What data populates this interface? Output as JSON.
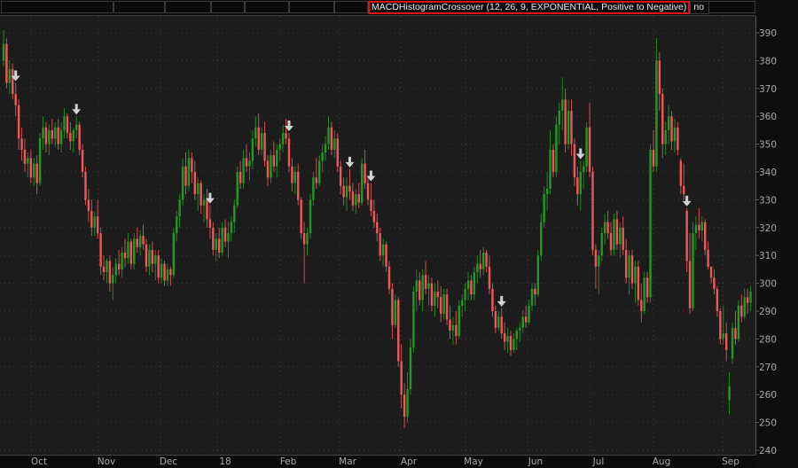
{
  "header": {
    "study_label": "MACDHistogramCrossover (12, 26, 9, EXPONENTIAL, Positive to Negative)",
    "study_value": "no"
  },
  "colors": {
    "background": "#1c1c1c",
    "up": "#1f9b1f",
    "down": "#f0575a",
    "signal_arrow": "#d2d2d2",
    "study_border": "#e01010",
    "grid": "#3a3a3a",
    "axis_text": "#a8a8a8"
  },
  "chart_data": {
    "type": "candlestick",
    "grid": true,
    "ylim": [
      240,
      392
    ],
    "y_ticks": [
      "390",
      "380",
      "370",
      "360",
      "350",
      "340",
      "330",
      "320",
      "310",
      "300",
      "290",
      "280",
      "270",
      "260",
      "250",
      "240"
    ],
    "x_ticks": [
      "Oct",
      "Nov",
      "Dec",
      "18",
      "Feb",
      "Mar",
      "Apr",
      "May",
      "Jun",
      "Jul",
      "Aug",
      "Sep"
    ],
    "signal": "down-arrow",
    "signal_indices": [
      4,
      24,
      68,
      94,
      114,
      121,
      164,
      190,
      225
    ],
    "bars_ohlc": [
      [
        380,
        391,
        378,
        386
      ],
      [
        386,
        388,
        370,
        372
      ],
      [
        372,
        380,
        368,
        377
      ],
      [
        377,
        379,
        366,
        368
      ],
      [
        368,
        372,
        360,
        364
      ],
      [
        364,
        366,
        348,
        352
      ],
      [
        352,
        356,
        344,
        348
      ],
      [
        348,
        352,
        340,
        343
      ],
      [
        343,
        347,
        338,
        345
      ],
      [
        345,
        348,
        336,
        338
      ],
      [
        338,
        345,
        335,
        343
      ],
      [
        343,
        346,
        332,
        336
      ],
      [
        336,
        354,
        335,
        352
      ],
      [
        352,
        360,
        348,
        356
      ],
      [
        356,
        358,
        347,
        350
      ],
      [
        350,
        357,
        346,
        355
      ],
      [
        355,
        359,
        350,
        352
      ],
      [
        352,
        358,
        349,
        356
      ],
      [
        356,
        359,
        348,
        350
      ],
      [
        350,
        358,
        347,
        355
      ],
      [
        355,
        363,
        352,
        360
      ],
      [
        360,
        361,
        352,
        354
      ],
      [
        354,
        358,
        348,
        351
      ],
      [
        351,
        356,
        347,
        355
      ],
      [
        355,
        360,
        352,
        357
      ],
      [
        357,
        358,
        346,
        348
      ],
      [
        348,
        350,
        338,
        340
      ],
      [
        340,
        342,
        328,
        330
      ],
      [
        330,
        334,
        322,
        326
      ],
      [
        326,
        330,
        317,
        320
      ],
      [
        320,
        326,
        317,
        324
      ],
      [
        324,
        330,
        316,
        318
      ],
      [
        318,
        320,
        303,
        306
      ],
      [
        306,
        310,
        301,
        304
      ],
      [
        304,
        309,
        300,
        308
      ],
      [
        308,
        310,
        297,
        300
      ],
      [
        300,
        306,
        294,
        303
      ],
      [
        303,
        309,
        300,
        307
      ],
      [
        307,
        312,
        303,
        305
      ],
      [
        305,
        313,
        302,
        311
      ],
      [
        311,
        316,
        306,
        309
      ],
      [
        309,
        318,
        307,
        315
      ],
      [
        315,
        316,
        305,
        307
      ],
      [
        307,
        318,
        305,
        316
      ],
      [
        316,
        320,
        311,
        313
      ],
      [
        313,
        319,
        310,
        317
      ],
      [
        317,
        321,
        312,
        314
      ],
      [
        314,
        316,
        304,
        306
      ],
      [
        306,
        314,
        303,
        312
      ],
      [
        312,
        315,
        304,
        307
      ],
      [
        307,
        312,
        301,
        310
      ],
      [
        310,
        312,
        300,
        302
      ],
      [
        302,
        309,
        300,
        307
      ],
      [
        307,
        308,
        299,
        301
      ],
      [
        301,
        307,
        299,
        305
      ],
      [
        305,
        306,
        299,
        303
      ],
      [
        303,
        320,
        302,
        318
      ],
      [
        318,
        326,
        315,
        324
      ],
      [
        324,
        332,
        320,
        330
      ],
      [
        330,
        345,
        328,
        342
      ],
      [
        342,
        347,
        332,
        335
      ],
      [
        335,
        348,
        333,
        345
      ],
      [
        345,
        347,
        336,
        340
      ],
      [
        340,
        344,
        330,
        332
      ],
      [
        332,
        338,
        326,
        336
      ],
      [
        336,
        337,
        325,
        328
      ],
      [
        328,
        332,
        322,
        330
      ],
      [
        330,
        334,
        320,
        323
      ],
      [
        323,
        328,
        316,
        320
      ],
      [
        320,
        322,
        310,
        312
      ],
      [
        312,
        318,
        308,
        316
      ],
      [
        316,
        320,
        309,
        311
      ],
      [
        311,
        322,
        310,
        320
      ],
      [
        320,
        323,
        313,
        315
      ],
      [
        315,
        322,
        309,
        318
      ],
      [
        318,
        324,
        315,
        322
      ],
      [
        322,
        330,
        318,
        328
      ],
      [
        328,
        342,
        327,
        340
      ],
      [
        340,
        344,
        334,
        336
      ],
      [
        336,
        348,
        334,
        345
      ],
      [
        345,
        350,
        340,
        342
      ],
      [
        342,
        347,
        337,
        344
      ],
      [
        344,
        355,
        341,
        352
      ],
      [
        352,
        360,
        349,
        356
      ],
      [
        356,
        361,
        346,
        348
      ],
      [
        348,
        356,
        346,
        354
      ],
      [
        354,
        358,
        342,
        344
      ],
      [
        344,
        346,
        335,
        338
      ],
      [
        338,
        348,
        336,
        346
      ],
      [
        346,
        351,
        340,
        342
      ],
      [
        342,
        350,
        338,
        348
      ],
      [
        348,
        352,
        344,
        350
      ],
      [
        350,
        357,
        347,
        354
      ],
      [
        354,
        359,
        350,
        352
      ],
      [
        352,
        354,
        340,
        342
      ],
      [
        342,
        345,
        333,
        336
      ],
      [
        336,
        342,
        332,
        340
      ],
      [
        340,
        343,
        328,
        330
      ],
      [
        330,
        331,
        316,
        318
      ],
      [
        318,
        322,
        300,
        314
      ],
      [
        314,
        320,
        310,
        318
      ],
      [
        318,
        332,
        316,
        330
      ],
      [
        330,
        340,
        328,
        338
      ],
      [
        338,
        345,
        334,
        336
      ],
      [
        336,
        346,
        335,
        344
      ],
      [
        344,
        350,
        340,
        347
      ],
      [
        347,
        353,
        344,
        350
      ],
      [
        350,
        360,
        348,
        356
      ],
      [
        356,
        358,
        346,
        348
      ],
      [
        348,
        355,
        345,
        352
      ],
      [
        352,
        354,
        340,
        342
      ],
      [
        342,
        344,
        332,
        335
      ],
      [
        335,
        338,
        328,
        331
      ],
      [
        331,
        338,
        326,
        335
      ],
      [
        335,
        341,
        330,
        333
      ],
      [
        333,
        336,
        326,
        328
      ],
      [
        328,
        334,
        325,
        332
      ],
      [
        332,
        336,
        327,
        329
      ],
      [
        329,
        345,
        328,
        343
      ],
      [
        343,
        348,
        334,
        336
      ],
      [
        336,
        338,
        328,
        330
      ],
      [
        330,
        336,
        324,
        326
      ],
      [
        326,
        330,
        320,
        322
      ],
      [
        322,
        325,
        315,
        318
      ],
      [
        318,
        320,
        308,
        310
      ],
      [
        310,
        316,
        306,
        314
      ],
      [
        314,
        315,
        304,
        306
      ],
      [
        306,
        308,
        296,
        298
      ],
      [
        298,
        300,
        280,
        285
      ],
      [
        285,
        296,
        284,
        294
      ],
      [
        294,
        295,
        270,
        272
      ],
      [
        272,
        278,
        255,
        260
      ],
      [
        260,
        264,
        248,
        252
      ],
      [
        252,
        268,
        250,
        262
      ],
      [
        262,
        280,
        260,
        277
      ],
      [
        277,
        299,
        275,
        297
      ],
      [
        297,
        305,
        290,
        301
      ],
      [
        301,
        304,
        292,
        294
      ],
      [
        294,
        305,
        290,
        303
      ],
      [
        303,
        308,
        296,
        298
      ],
      [
        298,
        303,
        292,
        300
      ],
      [
        300,
        302,
        290,
        292
      ],
      [
        292,
        300,
        288,
        297
      ],
      [
        297,
        301,
        291,
        295
      ],
      [
        295,
        299,
        286,
        289
      ],
      [
        289,
        298,
        287,
        296
      ],
      [
        296,
        298,
        285,
        287
      ],
      [
        287,
        292,
        280,
        283
      ],
      [
        283,
        288,
        278,
        285
      ],
      [
        285,
        290,
        278,
        281
      ],
      [
        281,
        294,
        280,
        292
      ],
      [
        292,
        296,
        288,
        294
      ],
      [
        294,
        300,
        290,
        298
      ],
      [
        298,
        304,
        294,
        301
      ],
      [
        301,
        303,
        294,
        296
      ],
      [
        296,
        306,
        294,
        304
      ],
      [
        304,
        310,
        300,
        307
      ],
      [
        307,
        312,
        302,
        305
      ],
      [
        305,
        313,
        303,
        311
      ],
      [
        311,
        312,
        304,
        306
      ],
      [
        306,
        310,
        296,
        298
      ],
      [
        298,
        300,
        288,
        290
      ],
      [
        290,
        292,
        282,
        284
      ],
      [
        284,
        290,
        283,
        288
      ],
      [
        288,
        291,
        280,
        282
      ],
      [
        282,
        286,
        276,
        279
      ],
      [
        279,
        284,
        275,
        281
      ],
      [
        281,
        283,
        274,
        276
      ],
      [
        276,
        282,
        275,
        280
      ],
      [
        280,
        284,
        276,
        283
      ],
      [
        283,
        286,
        279,
        284
      ],
      [
        284,
        290,
        282,
        288
      ],
      [
        288,
        292,
        284,
        286
      ],
      [
        286,
        294,
        285,
        292
      ],
      [
        292,
        300,
        290,
        298
      ],
      [
        298,
        300,
        292,
        296
      ],
      [
        296,
        312,
        295,
        310
      ],
      [
        310,
        325,
        308,
        322
      ],
      [
        322,
        335,
        320,
        332
      ],
      [
        332,
        340,
        326,
        334
      ],
      [
        334,
        355,
        332,
        348
      ],
      [
        348,
        350,
        338,
        340
      ],
      [
        340,
        360,
        338,
        357
      ],
      [
        357,
        365,
        350,
        362
      ],
      [
        362,
        374,
        355,
        366
      ],
      [
        366,
        370,
        347,
        350
      ],
      [
        350,
        366,
        348,
        362
      ],
      [
        362,
        366,
        346,
        350
      ],
      [
        350,
        352,
        335,
        338
      ],
      [
        338,
        342,
        328,
        332
      ],
      [
        332,
        344,
        326,
        340
      ],
      [
        340,
        344,
        334,
        342
      ],
      [
        342,
        358,
        340,
        356
      ],
      [
        356,
        365,
        338,
        340
      ],
      [
        340,
        342,
        310,
        312
      ],
      [
        312,
        314,
        298,
        306
      ],
      [
        306,
        312,
        296,
        310
      ],
      [
        310,
        320,
        308,
        318
      ],
      [
        318,
        325,
        314,
        322
      ],
      [
        322,
        326,
        316,
        318
      ],
      [
        318,
        322,
        310,
        312
      ],
      [
        312,
        325,
        310,
        323
      ],
      [
        323,
        326,
        312,
        314
      ],
      [
        314,
        322,
        309,
        320
      ],
      [
        320,
        324,
        310,
        312
      ],
      [
        312,
        316,
        300,
        302
      ],
      [
        302,
        312,
        296,
        310
      ],
      [
        310,
        312,
        298,
        300
      ],
      [
        300,
        308,
        293,
        306
      ],
      [
        306,
        308,
        292,
        294
      ],
      [
        294,
        300,
        286,
        290
      ],
      [
        290,
        304,
        289,
        302
      ],
      [
        302,
        304,
        293,
        295
      ],
      [
        295,
        350,
        293,
        348
      ],
      [
        348,
        355,
        340,
        342
      ],
      [
        342,
        388,
        340,
        380
      ],
      [
        380,
        383,
        362,
        368
      ],
      [
        368,
        370,
        345,
        350
      ],
      [
        350,
        358,
        346,
        355
      ],
      [
        355,
        364,
        350,
        360
      ],
      [
        360,
        362,
        348,
        351
      ],
      [
        351,
        359,
        347,
        356
      ],
      [
        356,
        358,
        346,
        348
      ],
      [
        344,
        345,
        332,
        335
      ],
      [
        335,
        343,
        330,
        332
      ],
      [
        326,
        327,
        304,
        308
      ],
      [
        308,
        318,
        289,
        291
      ],
      [
        291,
        322,
        290,
        318
      ],
      [
        318,
        324,
        312,
        321
      ],
      [
        321,
        327,
        316,
        319
      ],
      [
        319,
        324,
        315,
        322
      ],
      [
        322,
        323,
        310,
        312
      ],
      [
        312,
        315,
        305,
        306
      ],
      [
        306,
        306,
        300,
        302
      ],
      [
        302,
        305,
        296,
        298
      ],
      [
        298,
        299,
        288,
        290
      ],
      [
        290,
        291,
        278,
        280
      ],
      [
        280,
        292,
        278,
        282
      ],
      [
        282,
        286,
        272,
        276
      ],
      [
        258,
        268,
        253,
        263
      ],
      [
        273,
        286,
        271,
        284
      ],
      [
        284,
        290,
        278,
        280
      ],
      [
        280,
        294,
        279,
        292
      ],
      [
        292,
        296,
        286,
        288
      ],
      [
        288,
        298,
        287,
        295
      ],
      [
        295,
        298,
        289,
        293
      ],
      [
        293,
        299,
        290,
        297
      ]
    ]
  }
}
